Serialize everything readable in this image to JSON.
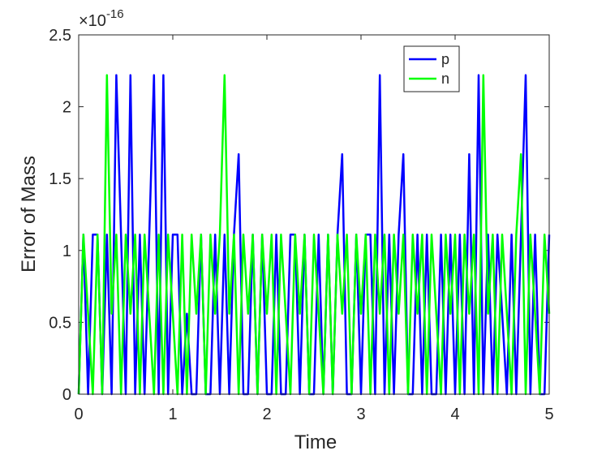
{
  "chart_data": {
    "type": "line",
    "xlabel": "Time",
    "ylabel": "Error of Mass",
    "y_multiplier": {
      "base": "×10",
      "exponent": "-16"
    },
    "x": [
      0,
      0.05,
      0.1,
      0.15,
      0.2,
      0.25,
      0.3,
      0.35,
      0.4,
      0.45,
      0.5,
      0.55,
      0.6,
      0.65,
      0.7,
      0.75,
      0.8,
      0.85,
      0.9,
      0.95,
      1,
      1.05,
      1.1,
      1.15,
      1.2,
      1.25,
      1.3,
      1.35,
      1.4,
      1.45,
      1.5,
      1.55,
      1.6,
      1.65,
      1.7,
      1.75,
      1.8,
      1.85,
      1.9,
      1.95,
      2,
      2.05,
      2.1,
      2.15,
      2.2,
      2.25,
      2.3,
      2.35,
      2.4,
      2.45,
      2.5,
      2.55,
      2.6,
      2.65,
      2.7,
      2.75,
      2.8,
      2.85,
      2.9,
      2.95,
      3,
      3.05,
      3.1,
      3.15,
      3.2,
      3.25,
      3.3,
      3.35,
      3.4,
      3.45,
      3.5,
      3.55,
      3.6,
      3.65,
      3.7,
      3.75,
      3.8,
      3.85,
      3.9,
      3.95,
      4,
      4.05,
      4.1,
      4.15,
      4.2,
      4.25,
      4.3,
      4.35,
      4.4,
      4.45,
      4.5,
      4.55,
      4.6,
      4.65,
      4.7,
      4.75,
      4.8,
      4.85,
      4.9,
      4.95,
      5
    ],
    "series": [
      {
        "name": "p",
        "color": "#0000ff",
        "values": [
          0,
          1.11,
          0,
          1.11,
          1.11,
          0,
          1.11,
          0,
          2.22,
          1.11,
          0,
          2.22,
          0,
          1.11,
          0,
          1.11,
          2.22,
          0,
          2.22,
          0,
          1.11,
          1.11,
          0,
          0.56,
          0,
          0,
          1.11,
          0,
          0,
          1.11,
          0,
          1.11,
          0,
          1.11,
          1.67,
          0,
          0,
          1.11,
          0,
          1.11,
          0,
          0,
          1.11,
          0,
          0,
          1.11,
          1.11,
          0,
          1.11,
          0,
          0,
          1.11,
          0,
          1.11,
          0,
          1.11,
          1.67,
          0,
          0,
          1.11,
          0,
          1.11,
          1.11,
          0,
          2.22,
          0,
          1.11,
          0,
          1.11,
          1.67,
          0,
          0,
          1.11,
          0,
          1.11,
          0,
          0,
          1.11,
          0,
          1.11,
          0,
          1.11,
          0,
          1.67,
          0,
          2.22,
          0,
          1.11,
          0,
          1.11,
          0.56,
          0,
          1.11,
          0,
          1.11,
          2.22,
          0,
          1.11,
          0,
          0,
          1.11
        ]
      },
      {
        "name": "n",
        "color": "#00ff00",
        "values": [
          0,
          1.11,
          0.56,
          0,
          1.11,
          0,
          2.22,
          0.56,
          1.11,
          0,
          1.11,
          0.56,
          1.11,
          0,
          1.11,
          0.56,
          0,
          1.11,
          0,
          1.11,
          0.56,
          0,
          1.11,
          0,
          1.11,
          0.56,
          1.11,
          0,
          1.11,
          0.56,
          1.11,
          2.22,
          0.56,
          1.11,
          0,
          1.11,
          0.56,
          1.11,
          0,
          1.11,
          0.56,
          1.11,
          0,
          1.11,
          0.56,
          0,
          1.11,
          0.56,
          1.11,
          0,
          1.11,
          0.56,
          0,
          1.11,
          0,
          1.11,
          0.56,
          1.11,
          0,
          1.11,
          0.56,
          1.11,
          0,
          1.11,
          0.56,
          1.11,
          0,
          1.11,
          0.56,
          1.11,
          0,
          1.11,
          0.56,
          1.11,
          0,
          1.11,
          0.56,
          0,
          1.11,
          0.56,
          1.11,
          0,
          1.11,
          0.56,
          1.11,
          0,
          2.22,
          0.56,
          1.11,
          0,
          1.11,
          0.56,
          0,
          1.11,
          1.67,
          0,
          1.11,
          0.56,
          0,
          1.11,
          0.56
        ]
      }
    ],
    "xlim": [
      0,
      5
    ],
    "xticks": [
      0,
      1,
      2,
      3,
      4,
      5
    ],
    "ylim": [
      0,
      2.5
    ],
    "yticks": [
      0,
      0.5,
      1,
      1.5,
      2,
      2.5
    ],
    "legend": "upper-right"
  }
}
